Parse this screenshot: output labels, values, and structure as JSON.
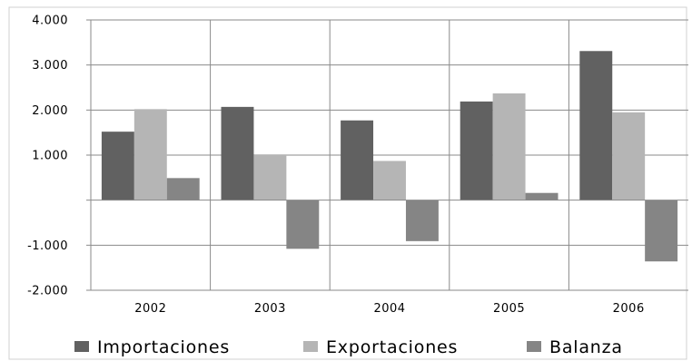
{
  "chart_data": {
    "type": "bar",
    "categories": [
      "2002",
      "2003",
      "2004",
      "2005",
      "2006"
    ],
    "series": [
      {
        "name": "Importaciones",
        "values": [
          1520,
          2070,
          1770,
          2190,
          3310
        ],
        "color": "#616161"
      },
      {
        "name": "Exportaciones",
        "values": [
          2020,
          1000,
          870,
          2370,
          1950
        ],
        "color": "#b5b5b5"
      },
      {
        "name": "Balanza",
        "values": [
          490,
          -1080,
          -910,
          160,
          -1360
        ],
        "color": "#858585"
      }
    ],
    "ylim": [
      -2000,
      4000
    ],
    "yticks": [
      -2000,
      -1000,
      0,
      1000,
      2000,
      3000,
      4000
    ],
    "ytick_labels": [
      "-2.000",
      "-1.000",
      "",
      "1.000",
      "2.000",
      "3.000",
      "4.000"
    ],
    "grid": true,
    "legend_position": "bottom"
  }
}
